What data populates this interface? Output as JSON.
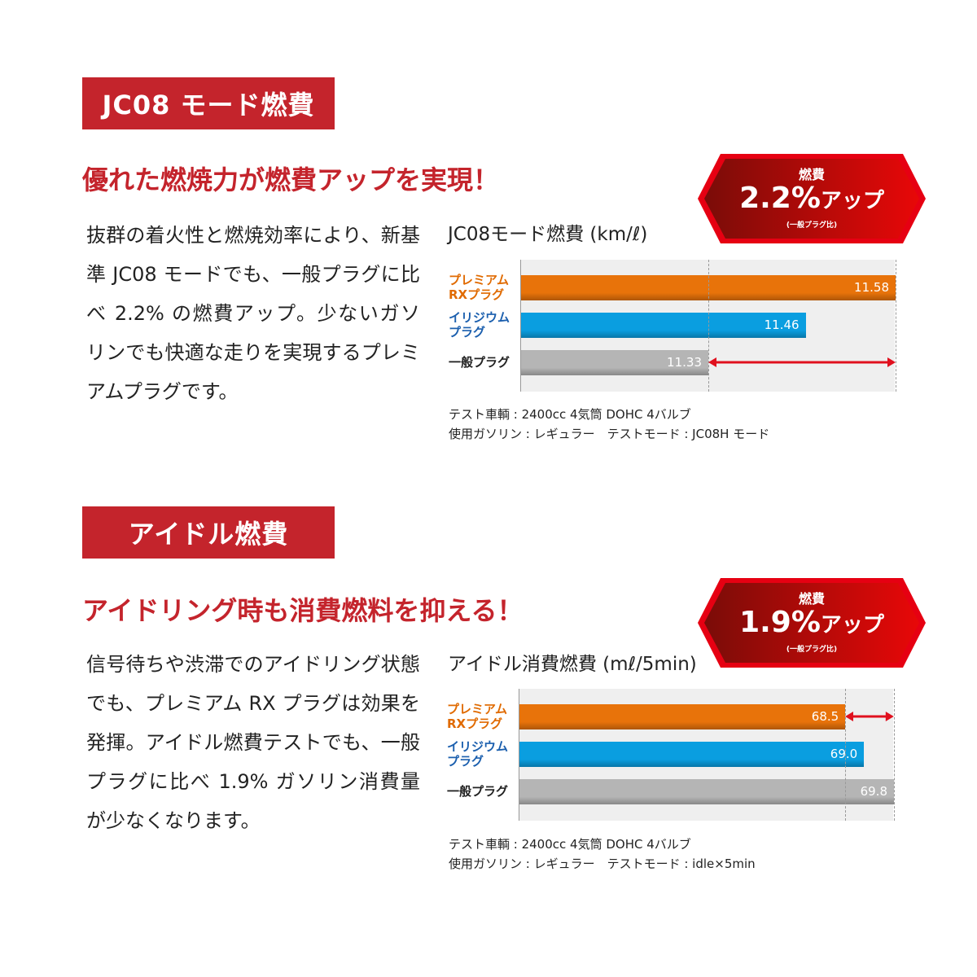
{
  "sections": [
    {
      "header": "JC08 モード燃費",
      "headline": "優れた燃焼力が燃費アップを実現！",
      "body": "抜群の着火性と燃焼効率により、新基準 JC08 モードでも、一般プラグに比べ 2.2% の燃費アップ。少ないガソリンでも快適な走りを実現するプレミアムプラグです。",
      "badge": {
        "label": "燃費",
        "value": "2.2%",
        "suffix": "アップ",
        "note": "(一般プラグ比)"
      },
      "notes": [
        "テスト車輌 : 2400cc 4気筒 DOHC 4バルブ",
        "使用ガソリン : レギュラー　テストモード : JC08H モード"
      ]
    },
    {
      "header": "アイドル燃費",
      "headline": "アイドリング時も消費燃料を抑える！",
      "body": "信号待ちや渋滞でのアイドリング状態でも、プレミアム RX プラグは効果を発揮。アイドル燃費テストでも、一般プラグに比べ 1.9% ガソリン消費量が少なくなります。",
      "badge": {
        "label": "燃費",
        "value": "1.9%",
        "suffix": "アップ",
        "note": "(一般プラグ比)"
      },
      "notes": [
        "テスト車輌 : 2400cc 4気筒 DOHC 4バルブ",
        "使用ガソリン : レギュラー　テストモード : idle×5min"
      ]
    }
  ],
  "colors": {
    "accent": "#c4242c",
    "premium": "#e8730a",
    "iridium": "#0a9ee0",
    "standard": "#b5b5b5",
    "arrow": "#e0101e"
  },
  "chart_data": [
    {
      "type": "bar",
      "orientation": "horizontal",
      "title": "JC08モード燃費 (km/ℓ)",
      "categories": [
        "プレミアム RXプラグ",
        "イリジウム プラグ",
        "一般プラグ"
      ],
      "values": [
        11.58,
        11.46,
        11.33
      ],
      "xlim": [
        11.08,
        11.58
      ],
      "grid": false,
      "category_colors": [
        "#e06a00",
        "#1b5fae",
        "#222222"
      ]
    },
    {
      "type": "bar",
      "orientation": "horizontal",
      "title": "アイドル消費燃費 (mℓ/5min)",
      "categories": [
        "プレミアム RXプラグ",
        "イリジウム プラグ",
        "一般プラグ"
      ],
      "values": [
        68.5,
        69.0,
        69.8
      ],
      "xlim": [
        59.8,
        69.8
      ],
      "grid": false,
      "category_colors": [
        "#e06a00",
        "#1b5fae",
        "#222222"
      ]
    }
  ]
}
